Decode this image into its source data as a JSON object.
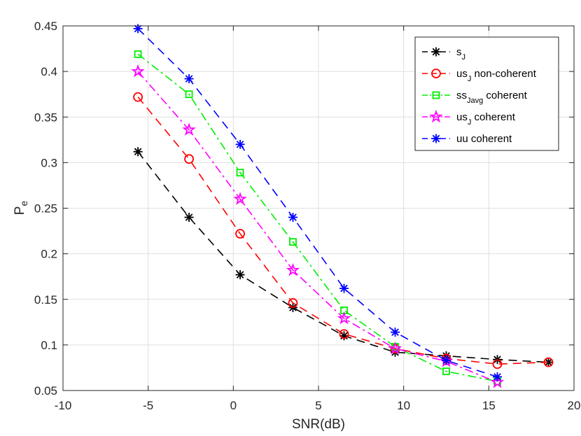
{
  "chart_data": {
    "type": "line",
    "title": "",
    "xlabel": "SNR(dB)",
    "ylabel": "P",
    "ylabel_sub": "e",
    "xlim": [
      -10,
      20
    ],
    "ylim": [
      0.05,
      0.45
    ],
    "xticks": [
      -10,
      -5,
      0,
      5,
      10,
      15,
      20
    ],
    "yticks": [
      0.05,
      0.1,
      0.15,
      0.2,
      0.25,
      0.3,
      0.35,
      0.4,
      0.45
    ],
    "xtick_labels": [
      "-10",
      "-5",
      "0",
      "5",
      "10",
      "15",
      "20"
    ],
    "ytick_labels": [
      "0.05",
      "0.1",
      "0.15",
      "0.2",
      "0.25",
      "0.3",
      "0.35",
      "0.4",
      "0.45"
    ],
    "grid": true,
    "legend_position": "top-right",
    "series": [
      {
        "name": "s_J",
        "legend_main": "s",
        "legend_sub": "J",
        "legend_rest": "",
        "color": "#000000",
        "dash": "dashed",
        "marker": "asterisk",
        "x": [
          -5.6,
          -2.6,
          0.4,
          3.5,
          6.5,
          9.5,
          12.5,
          15.5,
          18.5
        ],
        "y": [
          0.312,
          0.24,
          0.177,
          0.141,
          0.11,
          0.092,
          0.088,
          0.084,
          0.081
        ]
      },
      {
        "name": "us_J non-coherent",
        "legend_main": "us",
        "legend_sub": "J",
        "legend_rest": " non-coherent",
        "color": "#ff0000",
        "dash": "dashed",
        "marker": "circle",
        "x": [
          -5.6,
          -2.6,
          0.4,
          3.5,
          6.5,
          9.5,
          12.5,
          15.5,
          18.5
        ],
        "y": [
          0.372,
          0.304,
          0.222,
          0.146,
          0.112,
          0.096,
          0.085,
          0.079,
          0.081
        ]
      },
      {
        "name": "ss_Javg coherent",
        "legend_main": "ss",
        "legend_sub": "Javg",
        "legend_rest": " coherent",
        "color": "#00ee00",
        "dash": "dashdot",
        "marker": "square",
        "x": [
          -5.6,
          -2.6,
          0.4,
          3.5,
          6.5,
          9.5,
          12.5,
          15.5
        ],
        "y": [
          0.419,
          0.375,
          0.289,
          0.213,
          0.138,
          0.098,
          0.071,
          0.06
        ]
      },
      {
        "name": "us_J coherent",
        "legend_main": "us",
        "legend_sub": "J",
        "legend_rest": " coherent",
        "color": "#ff00ff",
        "dash": "dashdot",
        "marker": "star",
        "x": [
          -5.6,
          -2.6,
          0.4,
          3.5,
          6.5,
          9.5,
          12.5,
          15.5
        ],
        "y": [
          0.4,
          0.336,
          0.26,
          0.182,
          0.129,
          0.096,
          0.082,
          0.059
        ]
      },
      {
        "name": "uu coherent",
        "legend_main": "uu coherent",
        "legend_sub": "",
        "legend_rest": "",
        "color": "#0000ff",
        "dash": "dashed",
        "marker": "asterisk",
        "x": [
          -5.6,
          -2.6,
          0.4,
          3.5,
          6.5,
          9.5,
          12.5,
          15.5
        ],
        "y": [
          0.447,
          0.392,
          0.32,
          0.24,
          0.162,
          0.114,
          0.083,
          0.065
        ]
      }
    ]
  }
}
